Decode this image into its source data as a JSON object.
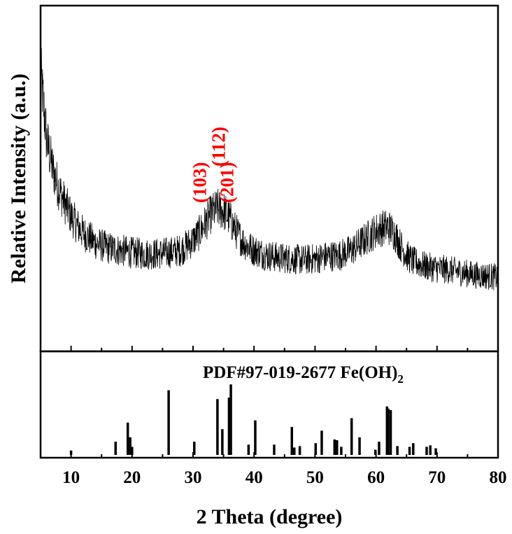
{
  "chart_data": [
    {
      "type": "line",
      "title": "",
      "xlabel": "2 Theta (degree)",
      "ylabel": "Relative Intensity (a.u.)",
      "xlim": [
        5,
        80
      ],
      "x_ticks": [
        10,
        20,
        30,
        40,
        50,
        60,
        70,
        80
      ],
      "y_tick_labels": "none",
      "grid": false,
      "legend": "none",
      "series": [
        {
          "x": [
            5,
            6,
            7,
            8,
            9,
            10,
            11,
            12,
            13,
            14,
            15,
            16,
            17,
            18,
            19,
            20,
            22,
            24,
            26,
            28,
            29,
            30,
            31,
            32,
            33,
            34,
            35,
            36,
            37,
            38,
            39,
            40,
            42,
            44,
            46,
            48,
            50,
            52,
            54,
            56,
            57,
            58,
            59,
            60,
            61,
            62,
            63,
            64,
            65,
            66,
            68,
            70,
            72,
            74,
            76,
            78,
            80
          ],
          "values": [
            100,
            72,
            60,
            52,
            46,
            41,
            37,
            34,
            32,
            30,
            29,
            28,
            27.5,
            27,
            26.5,
            26,
            25.5,
            25.5,
            26,
            27,
            29,
            31,
            34,
            38,
            42,
            44,
            43,
            40,
            35,
            31,
            28.5,
            27,
            25,
            24,
            23.5,
            23,
            23.5,
            24.5,
            25,
            27,
            29,
            31,
            33,
            35,
            36,
            36.5,
            34,
            29,
            25,
            22.5,
            20.5,
            19.5,
            19,
            18,
            17,
            16.5,
            16
          ]
        }
      ],
      "annotations": [
        {
          "label": "(103)",
          "x": 32.1
        },
        {
          "label": "(112)",
          "x": 35.2
        },
        {
          "label": "(201)",
          "x": 36.6
        }
      ]
    },
    {
      "type": "bar",
      "title": "PDF#97-019-2677 Fe(OH)",
      "title_subscript": "2",
      "xlim": [
        5,
        80
      ],
      "x": [
        10.0,
        17.3,
        19.3,
        19.7,
        20.0,
        26.0,
        30.2,
        34.0,
        34.8,
        35.9,
        36.2,
        39.1,
        40.2,
        43.3,
        46.2,
        46.6,
        47.5,
        50.1,
        51.1,
        53.2,
        53.6,
        54.3,
        56.0,
        57.3,
        59.9,
        60.5,
        61.8,
        62.0,
        62.4,
        63.5,
        65.5,
        66.1,
        68.3,
        68.9,
        69.8
      ],
      "values": [
        6,
        18,
        44,
        24,
        11,
        88,
        18,
        76,
        35,
        78,
        96,
        14,
        47,
        14,
        38,
        10,
        12,
        16,
        33,
        21,
        20,
        11,
        50,
        24,
        7,
        18,
        66,
        63,
        61,
        12,
        11,
        16,
        11,
        13,
        9
      ]
    }
  ]
}
